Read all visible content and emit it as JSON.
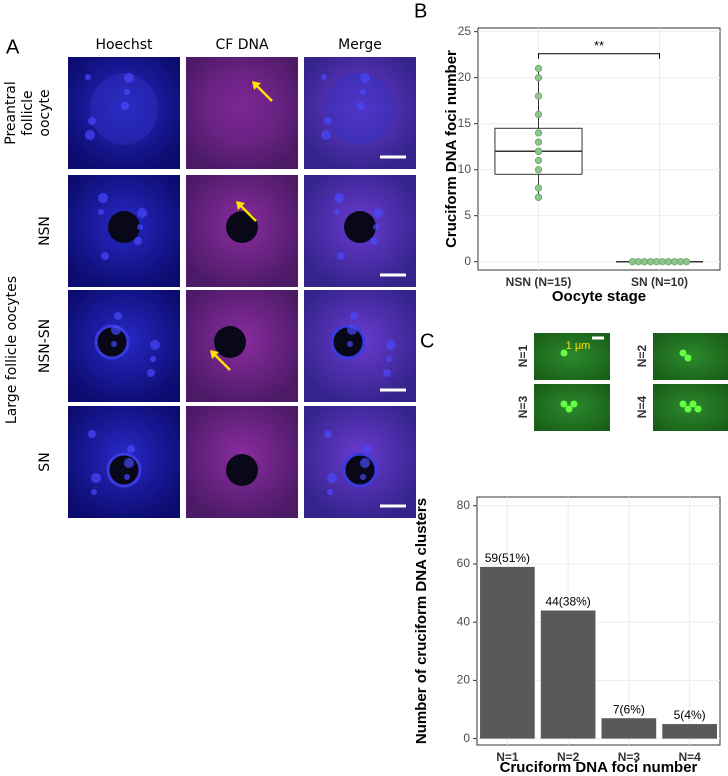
{
  "panel_labels": [
    "A",
    "B",
    "C"
  ],
  "panel_a": {
    "columns": [
      "Hoechst",
      "CF DNA",
      "Merge"
    ],
    "rows": [
      [
        "Preantral",
        "follicle",
        "oocyte"
      ],
      [
        "NSN"
      ],
      [
        "NSN-SN"
      ],
      [
        "SN"
      ]
    ],
    "group_label": "Large follicle oocytes"
  },
  "panel_c": {
    "images": [
      "N=1",
      "N=2",
      "N=3",
      "N=4"
    ],
    "scale_label": "1 μm"
  },
  "chart_data": [
    {
      "type": "box",
      "categories": [
        "NSN (N=15)",
        "SN (N=10)"
      ],
      "points": [
        [
          21,
          20,
          18,
          16,
          14,
          13,
          12,
          12,
          12,
          12,
          11,
          10,
          8,
          7,
          7
        ],
        [
          0,
          0,
          0,
          0,
          0,
          0,
          0,
          0,
          0,
          0
        ]
      ],
      "boxes": [
        {
          "low": 7,
          "q1": 9.5,
          "median": 12,
          "q3": 14.5,
          "high": 21
        },
        {
          "low": 0,
          "q1": 0,
          "median": 0,
          "q3": 0,
          "high": 0
        }
      ],
      "point_color": "#8cc68c",
      "ylim": [
        -0.9,
        25.4
      ],
      "yticks": [
        0,
        5,
        10,
        15,
        20,
        25
      ],
      "grid": true,
      "xlabel": "Oocyte stage",
      "ylabel": "Cruciform DNA foci number",
      "annotation": {
        "text": "**",
        "y": 22.6
      }
    },
    {
      "type": "bar",
      "categories": [
        "N=1",
        "N=2",
        "N=3",
        "N=4"
      ],
      "values": [
        59,
        44,
        7,
        5
      ],
      "value_labels": [
        "59(51%)",
        "44(38%)",
        "7(6%)",
        "5(4%)"
      ],
      "color": "#595959",
      "ylim": [
        -2.2,
        83
      ],
      "yticks": [
        0,
        20,
        40,
        60,
        80
      ],
      "grid": true,
      "xlabel": "Cruciform DNA foci number",
      "ylabel": "Number of cruciform DNA clusters"
    }
  ]
}
